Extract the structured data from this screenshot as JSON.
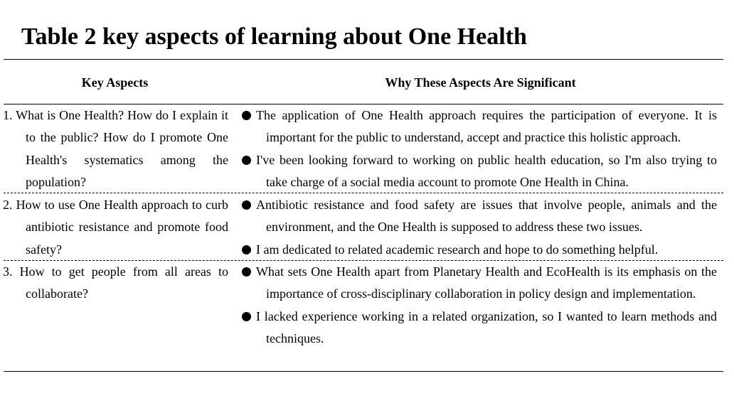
{
  "title": "Table 2 key aspects of learning about One Health",
  "table": {
    "headers": [
      "Key Aspects",
      "Why These Aspects Are Significant"
    ],
    "rows": [
      {
        "number": "1.",
        "aspect": "What is One Health? How do I explain it to the public? How do I promote One Health's systematics among the population?",
        "reasons": [
          "The application of One Health approach requires the participation of everyone. It is important for the public to understand, accept and practice this holistic approach.",
          "I've been looking forward to working on public health education, so I'm also trying to take charge of a social media account to promote One Health in China."
        ]
      },
      {
        "number": "2.",
        "aspect": "How to use One Health approach to curb antibiotic resistance and promote food safety?",
        "reasons": [
          "Antibiotic resistance and food safety are issues that involve people, animals and the environment, and the One Health is supposed to address these two issues.",
          "I am dedicated to related academic research and hope to do something helpful."
        ]
      },
      {
        "number": "3.",
        "aspect": "How to get people from all areas to collaborate?",
        "reasons": [
          "What sets One Health apart from Planetary Health and EcoHealth is its emphasis on the importance of cross-disciplinary collaboration in policy design and implementation.",
          "I lacked experience working in a related organization, so I wanted to learn methods and techniques."
        ]
      }
    ]
  }
}
